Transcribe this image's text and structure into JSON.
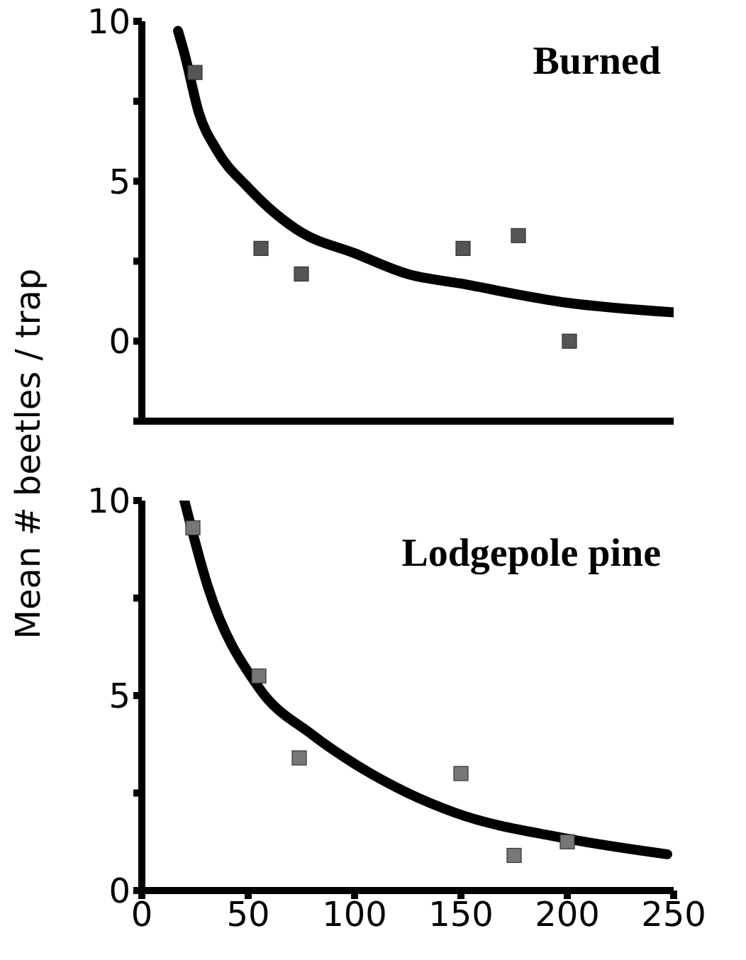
{
  "chart_data": [
    {
      "type": "scatter",
      "title": "Burned",
      "ylabel": "Mean # beetles / trap",
      "xlim": [
        0,
        250
      ],
      "xticks": [
        0,
        50,
        100,
        150,
        200,
        250
      ],
      "ylim": [
        -2.5,
        10
      ],
      "yticks": [
        {
          "value": -2.5,
          "label": null
        },
        0,
        {
          "value": 2.5,
          "label": null
        },
        5,
        {
          "value": 7.5,
          "label": null
        },
        10
      ],
      "tick_labels": "y",
      "marker": "square",
      "series": [
        {
          "type": "line",
          "color": "#000000",
          "marker": "none",
          "line_style": "solid",
          "x": [
            17,
            20,
            27,
            35,
            50,
            75,
            100,
            125,
            150,
            200,
            250
          ],
          "values": [
            9.7,
            9.0,
            7.1,
            6.0,
            4.8,
            3.4,
            2.75,
            2.1,
            1.8,
            1.2,
            0.9
          ]
        },
        {
          "color": "#555555",
          "x": [
            25,
            56,
            75,
            151,
            177,
            201
          ],
          "values": [
            8.4,
            2.9,
            2.1,
            2.9,
            3.3,
            0
          ]
        }
      ]
    },
    {
      "type": "scatter",
      "title": "Lodgepole pine",
      "xlim": [
        0,
        250
      ],
      "xticks": [
        0,
        50,
        100,
        150,
        200,
        250
      ],
      "ylim": [
        0,
        10
      ],
      "yticks": [
        0,
        {
          "value": 2.5,
          "label": null
        },
        5,
        {
          "value": 7.5,
          "label": null
        },
        10
      ],
      "marker": "square",
      "series": [
        {
          "type": "line",
          "color": "#000000",
          "marker": "none",
          "line_style": "solid",
          "x": [
            20,
            31,
            55,
            80,
            100,
            125,
            147,
            200,
            247
          ],
          "values": [
            10,
            7.8,
            5.2,
            4.0,
            3.25,
            2.5,
            2.0,
            1.33,
            0.93
          ]
        },
        {
          "color": "#777777",
          "x": [
            24,
            55,
            74,
            150,
            175,
            200
          ],
          "values": [
            9.3,
            5.5,
            3.4,
            3.0,
            0.9,
            1.25
          ]
        }
      ]
    }
  ]
}
